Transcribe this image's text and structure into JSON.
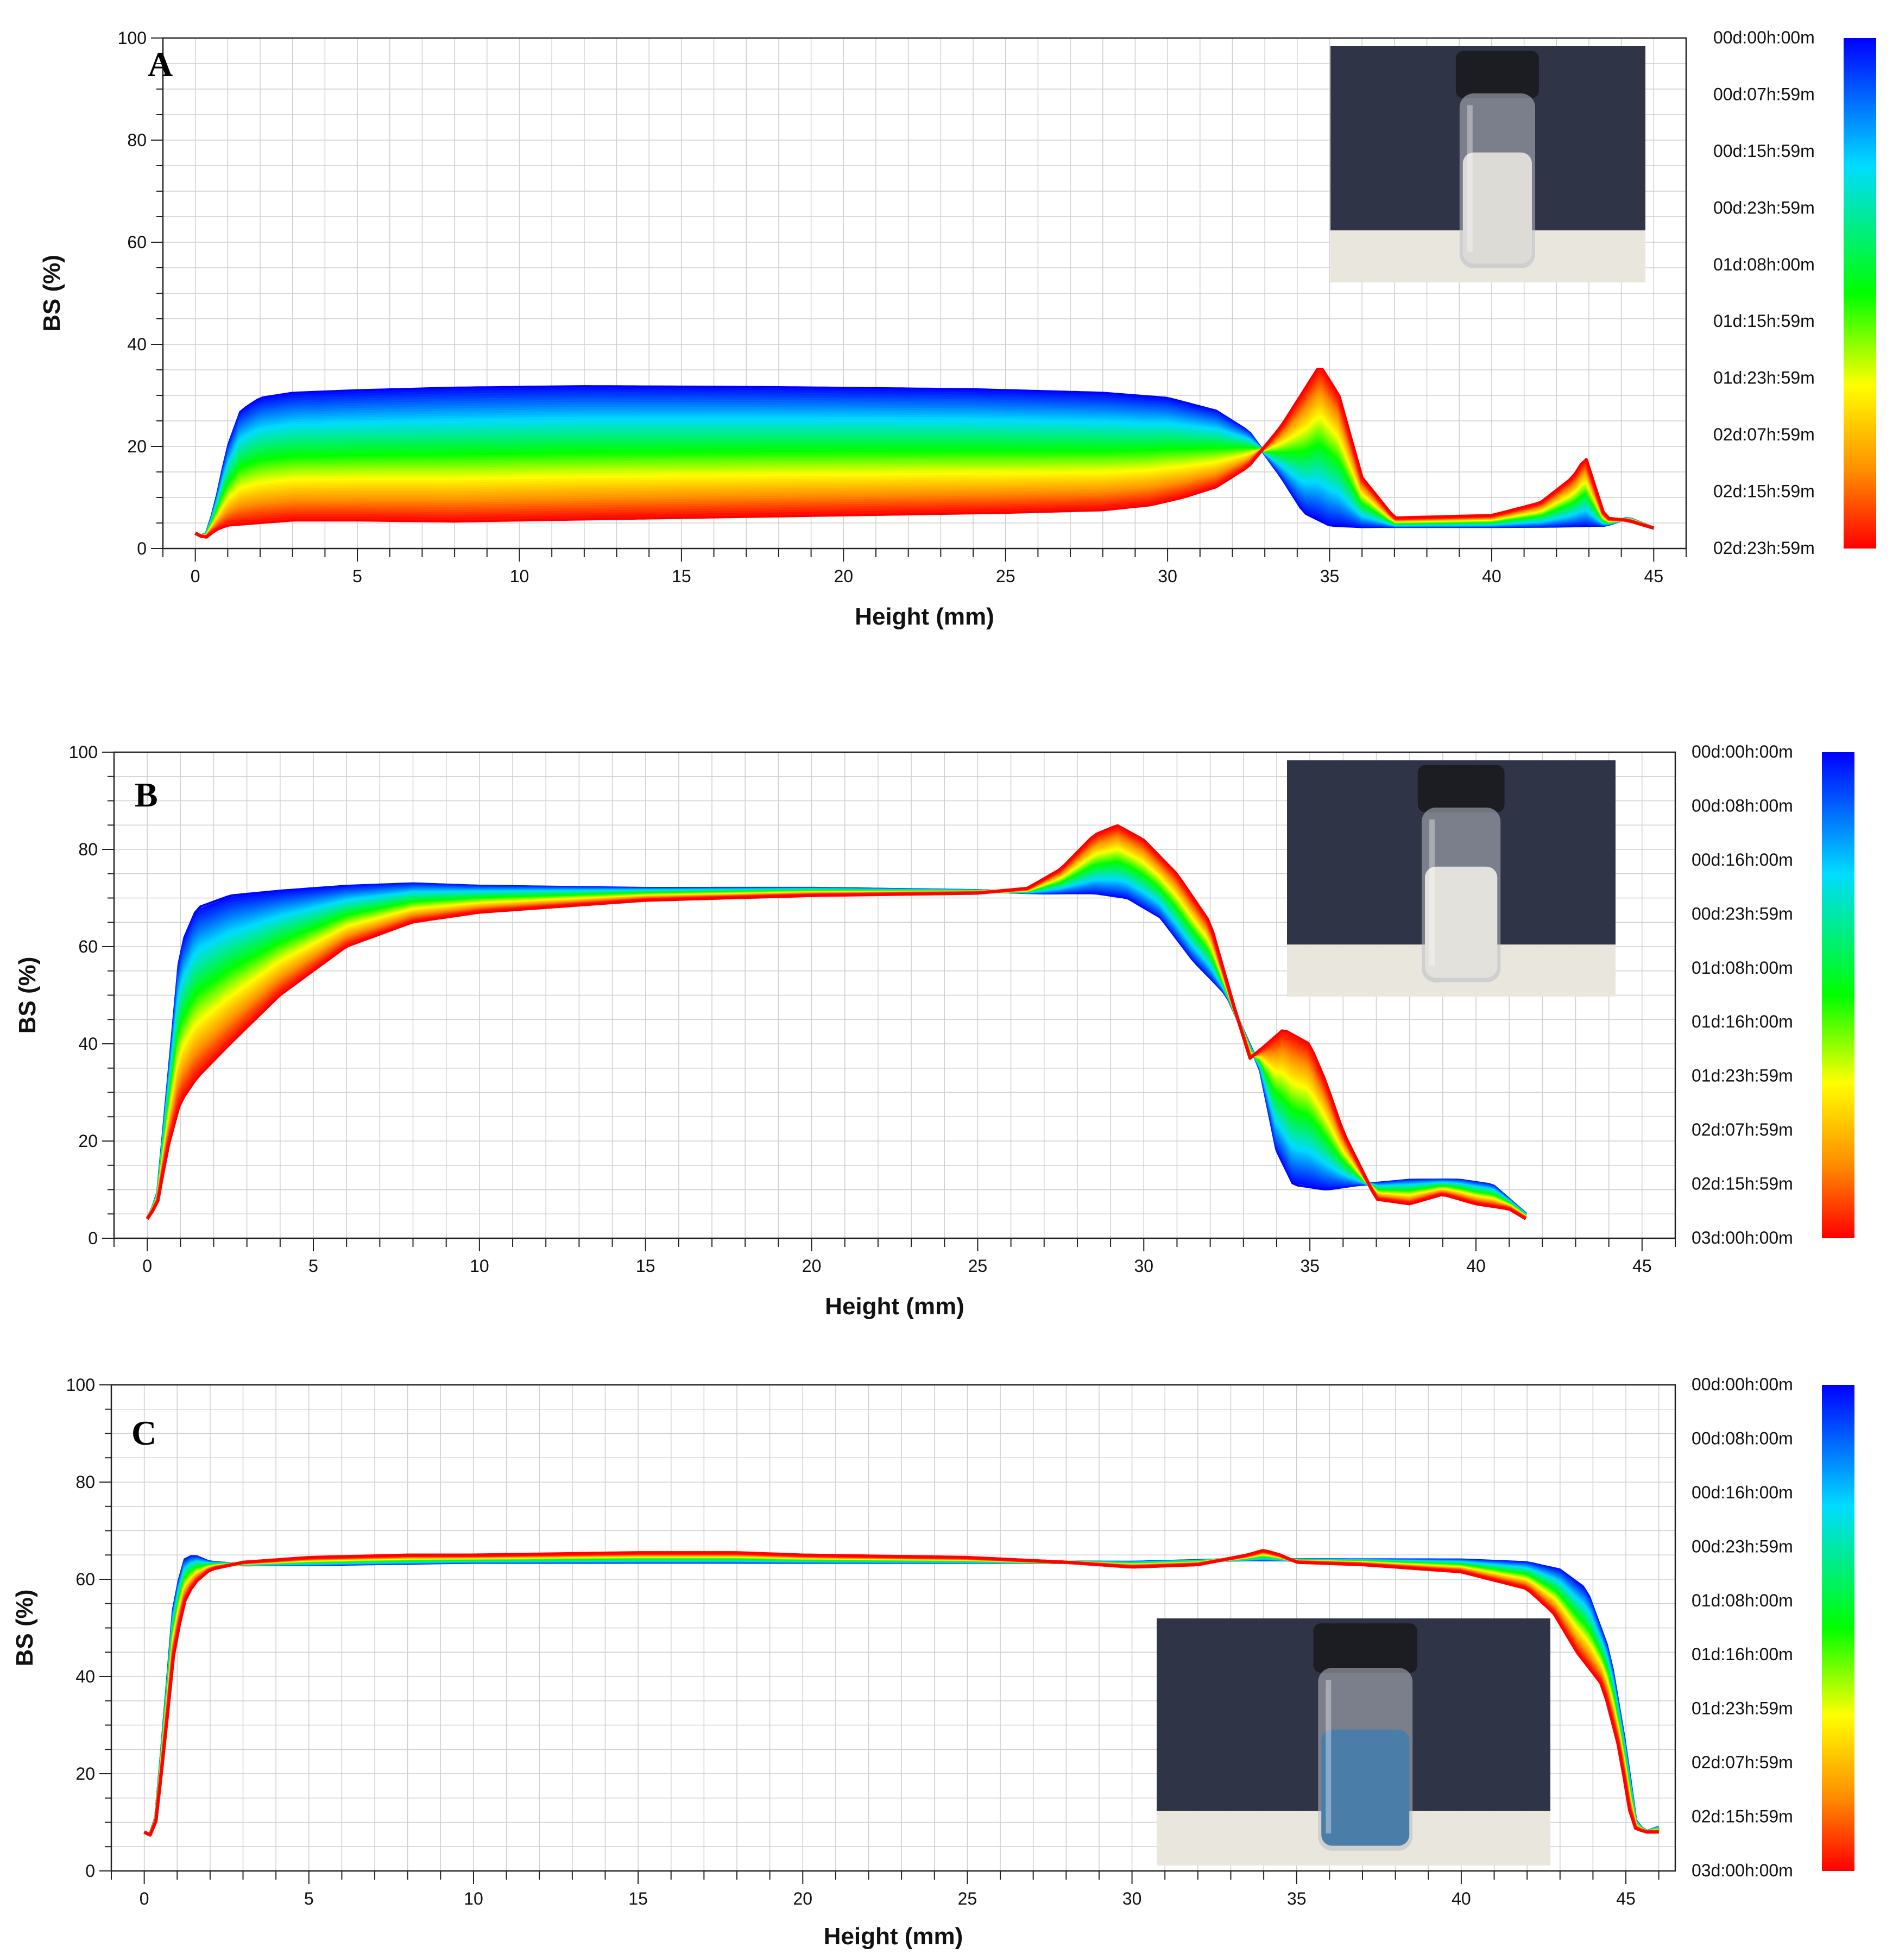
{
  "figure": {
    "panels": [
      "A",
      "B",
      "C"
    ]
  },
  "chart_data": [
    {
      "type": "line",
      "panel_letter": "A",
      "xlabel": "Height (mm)",
      "ylabel": "BS (%)",
      "xlim": [
        -1,
        46
      ],
      "ylim": [
        0,
        100
      ],
      "x_ticks": [
        0,
        5,
        10,
        15,
        20,
        25,
        30,
        35,
        40,
        45
      ],
      "y_ticks": [
        0,
        20,
        40,
        60,
        80,
        100
      ],
      "grid": true,
      "legend_position": "right",
      "legend": [
        "00d:00h:00m",
        "00d:07h:59m",
        "00d:15h:59m",
        "00d:23h:59m",
        "01d:08h:00m",
        "01d:15h:59m",
        "01d:23h:59m",
        "02d:07h:59m",
        "02d:15h:59m",
        "02d:23h:59m"
      ],
      "colors": [
        "#0000ff",
        "#0080ff",
        "#00e0ff",
        "#00ff66",
        "#40ff00",
        "#c8ff00",
        "#ffe000",
        "#ff9000",
        "#ff3000",
        "#ff0000"
      ],
      "inset_photo": {
        "position": "top-right",
        "liquid_color": "#dddbd6",
        "background_color": "#2f3446"
      },
      "series_first": {
        "name": "00d:00h:00m",
        "x": [
          0,
          0.3,
          0.6,
          1.0,
          1.4,
          2.0,
          3.0,
          5.0,
          8.0,
          12.0,
          18.0,
          24.0,
          28.0,
          30.0,
          31.5,
          32.5,
          33.5,
          34.2,
          35.0,
          36.0,
          37.0,
          40.0,
          42.0,
          43.5,
          44.2,
          45.0
        ],
        "y": [
          3,
          2,
          8,
          20,
          27,
          29.5,
          30.5,
          31,
          31.5,
          31.8,
          31.6,
          31.2,
          30.5,
          29.5,
          27,
          23,
          14,
          7,
          4.5,
          4.2,
          4.3,
          4.3,
          4.3,
          4.5,
          6,
          4
        ]
      },
      "series_last": {
        "name": "02d:23h:59m",
        "x": [
          0,
          0.3,
          0.6,
          1.0,
          2.0,
          3.0,
          5.0,
          8.0,
          10.0,
          15.0,
          20.0,
          25.0,
          28.0,
          29.5,
          30.5,
          31.5,
          32.5,
          33.5,
          34.2,
          34.7,
          35.3,
          36.0,
          37.0,
          40.0,
          41.5,
          42.5,
          42.9,
          43.5,
          44.2,
          45.0
        ],
        "y": [
          3,
          2,
          3.5,
          4.5,
          5,
          5.5,
          5.5,
          5.3,
          5.5,
          6,
          6.5,
          7,
          7.5,
          8.5,
          10,
          12,
          16,
          24,
          31,
          36,
          30,
          14,
          6,
          6.5,
          9,
          14,
          18,
          6,
          5.5,
          4
        ]
      }
    },
    {
      "type": "line",
      "panel_letter": "B",
      "xlabel": "Height (mm)",
      "ylabel": "BS (%)",
      "xlim": [
        -1,
        46
      ],
      "ylim": [
        0,
        100
      ],
      "x_ticks": [
        0,
        5,
        10,
        15,
        20,
        25,
        30,
        35,
        40,
        45
      ],
      "y_ticks": [
        0,
        20,
        40,
        60,
        80,
        100
      ],
      "grid": true,
      "legend_position": "right",
      "legend": [
        "00d:00h:00m",
        "00d:08h:00m",
        "00d:16h:00m",
        "00d:23h:59m",
        "01d:08h:00m",
        "01d:16h:00m",
        "01d:23h:59m",
        "02d:07h:59m",
        "02d:15h:59m",
        "03d:00h:00m"
      ],
      "colors": [
        "#0000ff",
        "#0080ff",
        "#00e0ff",
        "#00ff66",
        "#40ff00",
        "#c8ff00",
        "#ffe000",
        "#ff9000",
        "#ff3000",
        "#ff0000"
      ],
      "inset_photo": {
        "position": "top-right",
        "liquid_color": "#e2e1dc",
        "background_color": "#2f3446"
      },
      "series_first": {
        "name": "00d:00h:00m",
        "x": [
          0,
          0.3,
          0.6,
          1.0,
          1.5,
          2.5,
          4.0,
          6.0,
          8.0,
          10.0,
          15.0,
          20.0,
          25.0,
          27.0,
          28.5,
          29.5,
          30.5,
          31.5,
          32.5,
          33.5,
          34.0,
          34.5,
          35.5,
          36.5,
          38.0,
          39.5,
          40.5,
          41.0,
          41.5
        ],
        "y": [
          4,
          8,
          30,
          60,
          68,
          70.5,
          71.5,
          72.5,
          73,
          72.5,
          72,
          72,
          71.5,
          71,
          71,
          70,
          66,
          57,
          50,
          35,
          18,
          11,
          10,
          11,
          12,
          12,
          11,
          8,
          5
        ]
      },
      "series_last": {
        "name": "03d:00h:00m",
        "x": [
          0,
          0.3,
          0.6,
          1.0,
          1.5,
          2.5,
          4.0,
          6.0,
          8.0,
          10.0,
          15.0,
          20.0,
          25.0,
          26.5,
          27.5,
          28.5,
          29.2,
          30.0,
          31.0,
          32.0,
          32.7,
          33.2,
          33.7,
          34.2,
          35.0,
          35.5,
          36.0,
          37.0,
          38.0,
          39.0,
          40.0,
          41.0,
          41.5
        ],
        "y": [
          4,
          7,
          18,
          28,
          33,
          40,
          50,
          60,
          65,
          67,
          69.5,
          70.5,
          71,
          72,
          76,
          83,
          85,
          82,
          75,
          65,
          48,
          37,
          40,
          43,
          40,
          32,
          22,
          8,
          7,
          9,
          7,
          6,
          4
        ]
      }
    },
    {
      "type": "line",
      "panel_letter": "C",
      "xlabel": "Height (mm)",
      "ylabel": "BS (%)",
      "xlim": [
        -1,
        46.5
      ],
      "ylim": [
        0,
        100
      ],
      "x_ticks": [
        0,
        5,
        10,
        15,
        20,
        25,
        30,
        35,
        40,
        45
      ],
      "y_ticks": [
        0,
        20,
        40,
        60,
        80,
        100
      ],
      "grid": true,
      "legend_position": "right",
      "legend": [
        "00d:00h:00m",
        "00d:08h:00m",
        "00d:16h:00m",
        "00d:23h:59m",
        "01d:08h:00m",
        "01d:16h:00m",
        "01d:23h:59m",
        "02d:07h:59m",
        "02d:15h:59m",
        "03d:00h:00m"
      ],
      "colors": [
        "#0000ff",
        "#0080ff",
        "#00e0ff",
        "#00ff66",
        "#40ff00",
        "#c8ff00",
        "#ffe000",
        "#ff9000",
        "#ff3000",
        "#ff0000"
      ],
      "inset_photo": {
        "position": "bottom-right",
        "liquid_color": "#4a7ea8",
        "background_color": "#2f3446"
      },
      "series_first": {
        "name": "00d:00h:00m",
        "x": [
          0,
          0.3,
          0.6,
          0.9,
          1.2,
          1.5,
          2.0,
          3.0,
          5.0,
          10.0,
          15.0,
          20.0,
          25.0,
          30.0,
          33.0,
          35.0,
          40.0,
          42.0,
          43.0,
          43.8,
          44.5,
          45.0,
          45.3,
          45.6,
          46.0
        ],
        "y": [
          8,
          7,
          30,
          55,
          64,
          65,
          63.5,
          63,
          63,
          63.5,
          63.5,
          63.5,
          63.5,
          63.5,
          64,
          64,
          64,
          63.5,
          62,
          58,
          45,
          25,
          10,
          8,
          9
        ]
      },
      "series_last": {
        "name": "03d:00h:00m",
        "x": [
          0,
          0.3,
          0.6,
          0.9,
          1.2,
          1.5,
          2.0,
          3.0,
          5.0,
          8.0,
          10.0,
          15.0,
          18.0,
          20.0,
          25.0,
          28.0,
          30.0,
          32.0,
          33.5,
          34.0,
          34.5,
          35.0,
          37.0,
          40.0,
          42.0,
          42.8,
          43.5,
          44.3,
          44.8,
          45.2,
          45.6,
          46.0
        ],
        "y": [
          8,
          7,
          25,
          45,
          55,
          59,
          62,
          63.5,
          64.5,
          65,
          65,
          65.5,
          65.5,
          65,
          64.5,
          63.5,
          62.5,
          63,
          65,
          66,
          65,
          63.5,
          63,
          61.5,
          58,
          53,
          45,
          38,
          25,
          9,
          8,
          8
        ]
      }
    }
  ]
}
